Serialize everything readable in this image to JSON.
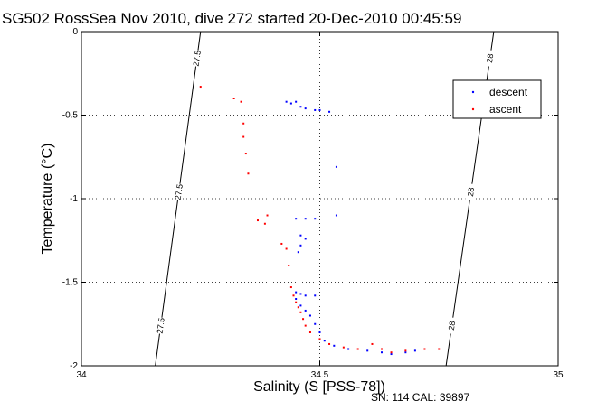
{
  "chart_data": {
    "type": "scatter",
    "title": "SG502 RossSea Nov 2010, dive 272 started 20-Dec-2010 00:45:59",
    "xlabel": "Salinity (S [PSS-78])",
    "ylabel": "Temperature (°C)",
    "xlim": [
      34,
      35
    ],
    "ylim": [
      -2,
      0
    ],
    "x_ticks": [
      "34",
      "34.5",
      "35"
    ],
    "y_ticks": [
      "0",
      "-0.5",
      "-1",
      "-1.5",
      "-2"
    ],
    "grid": "dotted",
    "legend": "top-right",
    "isopycnals": [
      {
        "label": "27.5",
        "points": [
          [
            34.155,
            -2.0
          ],
          [
            34.25,
            0.0
          ]
        ]
      },
      {
        "label": "28",
        "points": [
          [
            34.765,
            -2.0
          ],
          [
            34.865,
            0.0
          ]
        ]
      }
    ],
    "series": [
      {
        "name": "descent",
        "color": "#0000ff",
        "points": [
          [
            34.43,
            -0.42
          ],
          [
            34.44,
            -0.43
          ],
          [
            34.45,
            -0.42
          ],
          [
            34.46,
            -0.45
          ],
          [
            34.47,
            -0.46
          ],
          [
            34.49,
            -0.47
          ],
          [
            34.5,
            -0.47
          ],
          [
            34.52,
            -0.48
          ],
          [
            34.535,
            -0.81
          ],
          [
            34.535,
            -1.1
          ],
          [
            34.45,
            -1.12
          ],
          [
            34.47,
            -1.12
          ],
          [
            34.49,
            -1.12
          ],
          [
            34.46,
            -1.22
          ],
          [
            34.47,
            -1.24
          ],
          [
            34.46,
            -1.28
          ],
          [
            34.455,
            -1.32
          ],
          [
            34.45,
            -1.56
          ],
          [
            34.46,
            -1.57
          ],
          [
            34.47,
            -1.58
          ],
          [
            34.49,
            -1.58
          ],
          [
            34.45,
            -1.6
          ],
          [
            34.46,
            -1.64
          ],
          [
            34.47,
            -1.67
          ],
          [
            34.48,
            -1.7
          ],
          [
            34.49,
            -1.75
          ],
          [
            34.5,
            -1.8
          ],
          [
            34.51,
            -1.85
          ],
          [
            34.53,
            -1.88
          ],
          [
            34.56,
            -1.9
          ],
          [
            34.6,
            -1.91
          ],
          [
            34.63,
            -1.92
          ],
          [
            34.65,
            -1.93
          ],
          [
            34.68,
            -1.92
          ],
          [
            34.7,
            -1.91
          ]
        ]
      },
      {
        "name": "ascent",
        "color": "#ff0000",
        "points": [
          [
            34.25,
            -0.33
          ],
          [
            34.32,
            -0.4
          ],
          [
            34.335,
            -0.42
          ],
          [
            34.34,
            -0.55
          ],
          [
            34.34,
            -0.63
          ],
          [
            34.345,
            -0.73
          ],
          [
            34.35,
            -0.85
          ],
          [
            34.37,
            -1.13
          ],
          [
            34.385,
            -1.15
          ],
          [
            34.39,
            -1.1
          ],
          [
            34.42,
            -1.27
          ],
          [
            34.43,
            -1.3
          ],
          [
            34.435,
            -1.4
          ],
          [
            34.44,
            -1.53
          ],
          [
            34.445,
            -1.58
          ],
          [
            34.45,
            -1.62
          ],
          [
            34.455,
            -1.65
          ],
          [
            34.46,
            -1.68
          ],
          [
            34.465,
            -1.72
          ],
          [
            34.47,
            -1.76
          ],
          [
            34.48,
            -1.8
          ],
          [
            34.5,
            -1.84
          ],
          [
            34.52,
            -1.87
          ],
          [
            34.55,
            -1.89
          ],
          [
            34.58,
            -1.9
          ],
          [
            34.61,
            -1.87
          ],
          [
            34.63,
            -1.9
          ],
          [
            34.65,
            -1.92
          ],
          [
            34.68,
            -1.91
          ],
          [
            34.72,
            -1.9
          ],
          [
            34.75,
            -1.9
          ]
        ]
      }
    ]
  },
  "footer": "SN: 114  CAL: 39897"
}
